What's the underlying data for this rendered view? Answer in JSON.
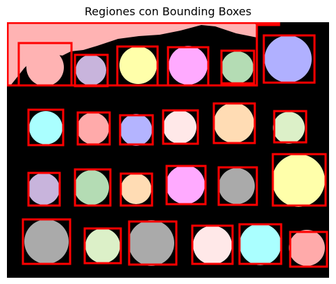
{
  "title": "Regiones con Bounding Boxes",
  "colors": {
    "background": "#000000",
    "bounding_box": "#ff0000"
  },
  "regions": [
    {
      "kind": "top_band",
      "fill": "#ffb3b3"
    },
    {
      "fill": "#ffb3b3"
    },
    {
      "fill": "#c8b4dc"
    },
    {
      "fill": "#ffffaa"
    },
    {
      "fill": "#ffaaff"
    },
    {
      "fill": "#b4dcb4"
    },
    {
      "fill": "#b0b0ff"
    },
    {
      "fill": "#aaffff"
    },
    {
      "fill": "#ffaaaa"
    },
    {
      "fill": "#b4b4ff"
    },
    {
      "fill": "#ffe8e8"
    },
    {
      "fill": "#ffdcb4"
    },
    {
      "fill": "#dcf0c8"
    },
    {
      "fill": "#c8b4dc"
    },
    {
      "fill": "#b4dcb4"
    },
    {
      "fill": "#ffdcb4"
    },
    {
      "fill": "#ffaaff"
    },
    {
      "fill": "#aaaaaa"
    },
    {
      "fill": "#ffffaa"
    },
    {
      "fill": "#aaaaaa"
    },
    {
      "fill": "#dcf0c8"
    },
    {
      "fill": "#aaaaaa"
    },
    {
      "fill": "#ffe8e8"
    },
    {
      "fill": "#aaffff"
    },
    {
      "fill": "#ffaaaa"
    }
  ]
}
